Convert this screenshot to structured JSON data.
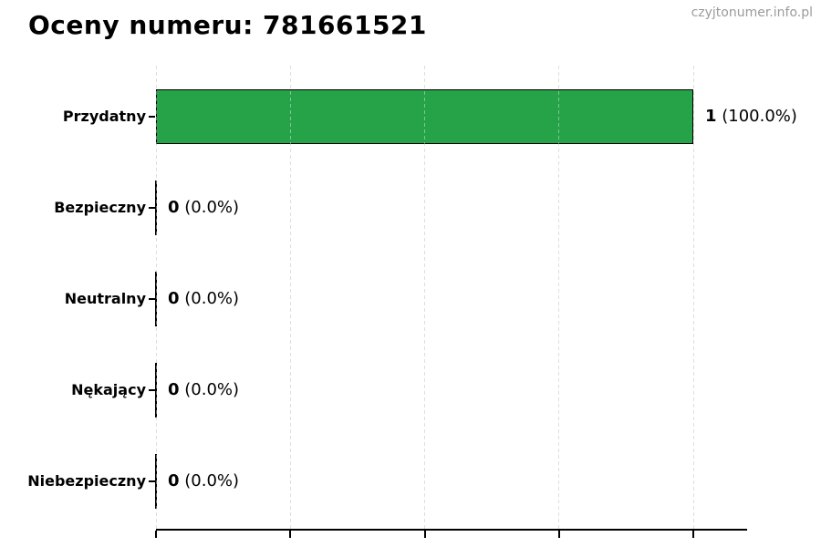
{
  "page": {
    "title": "Oceny numeru: 781661521",
    "watermark": "czyjtonumer.info.pl"
  },
  "chart_data": {
    "type": "bar",
    "orientation": "horizontal",
    "title": "Oceny numeru: 781661521",
    "categories": [
      "Przydatny",
      "Bezpieczny",
      "Neutralny",
      "Nękający",
      "Niebezpieczny"
    ],
    "values": [
      1,
      0,
      0,
      0,
      0
    ],
    "value_labels": [
      {
        "count": "1",
        "percent": "(100.0%)"
      },
      {
        "count": "0",
        "percent": "(0.0%)"
      },
      {
        "count": "0",
        "percent": "(0.0%)"
      },
      {
        "count": "0",
        "percent": "(0.0%)"
      },
      {
        "count": "0",
        "percent": "(0.0%)"
      }
    ],
    "xlabel": "",
    "ylabel": "",
    "xlim": [
      0,
      1.1
    ],
    "xticks": [
      0,
      0.25,
      0.5,
      0.75,
      1
    ],
    "xtick_labels_visible": false,
    "grid": "vertical-dashed",
    "legend": "none",
    "bar_color": "#26a348",
    "bar_edge_color": "#000000",
    "gridline_color": "#c9c9c9",
    "axis_color": "#000000",
    "background": "#ffffff"
  }
}
